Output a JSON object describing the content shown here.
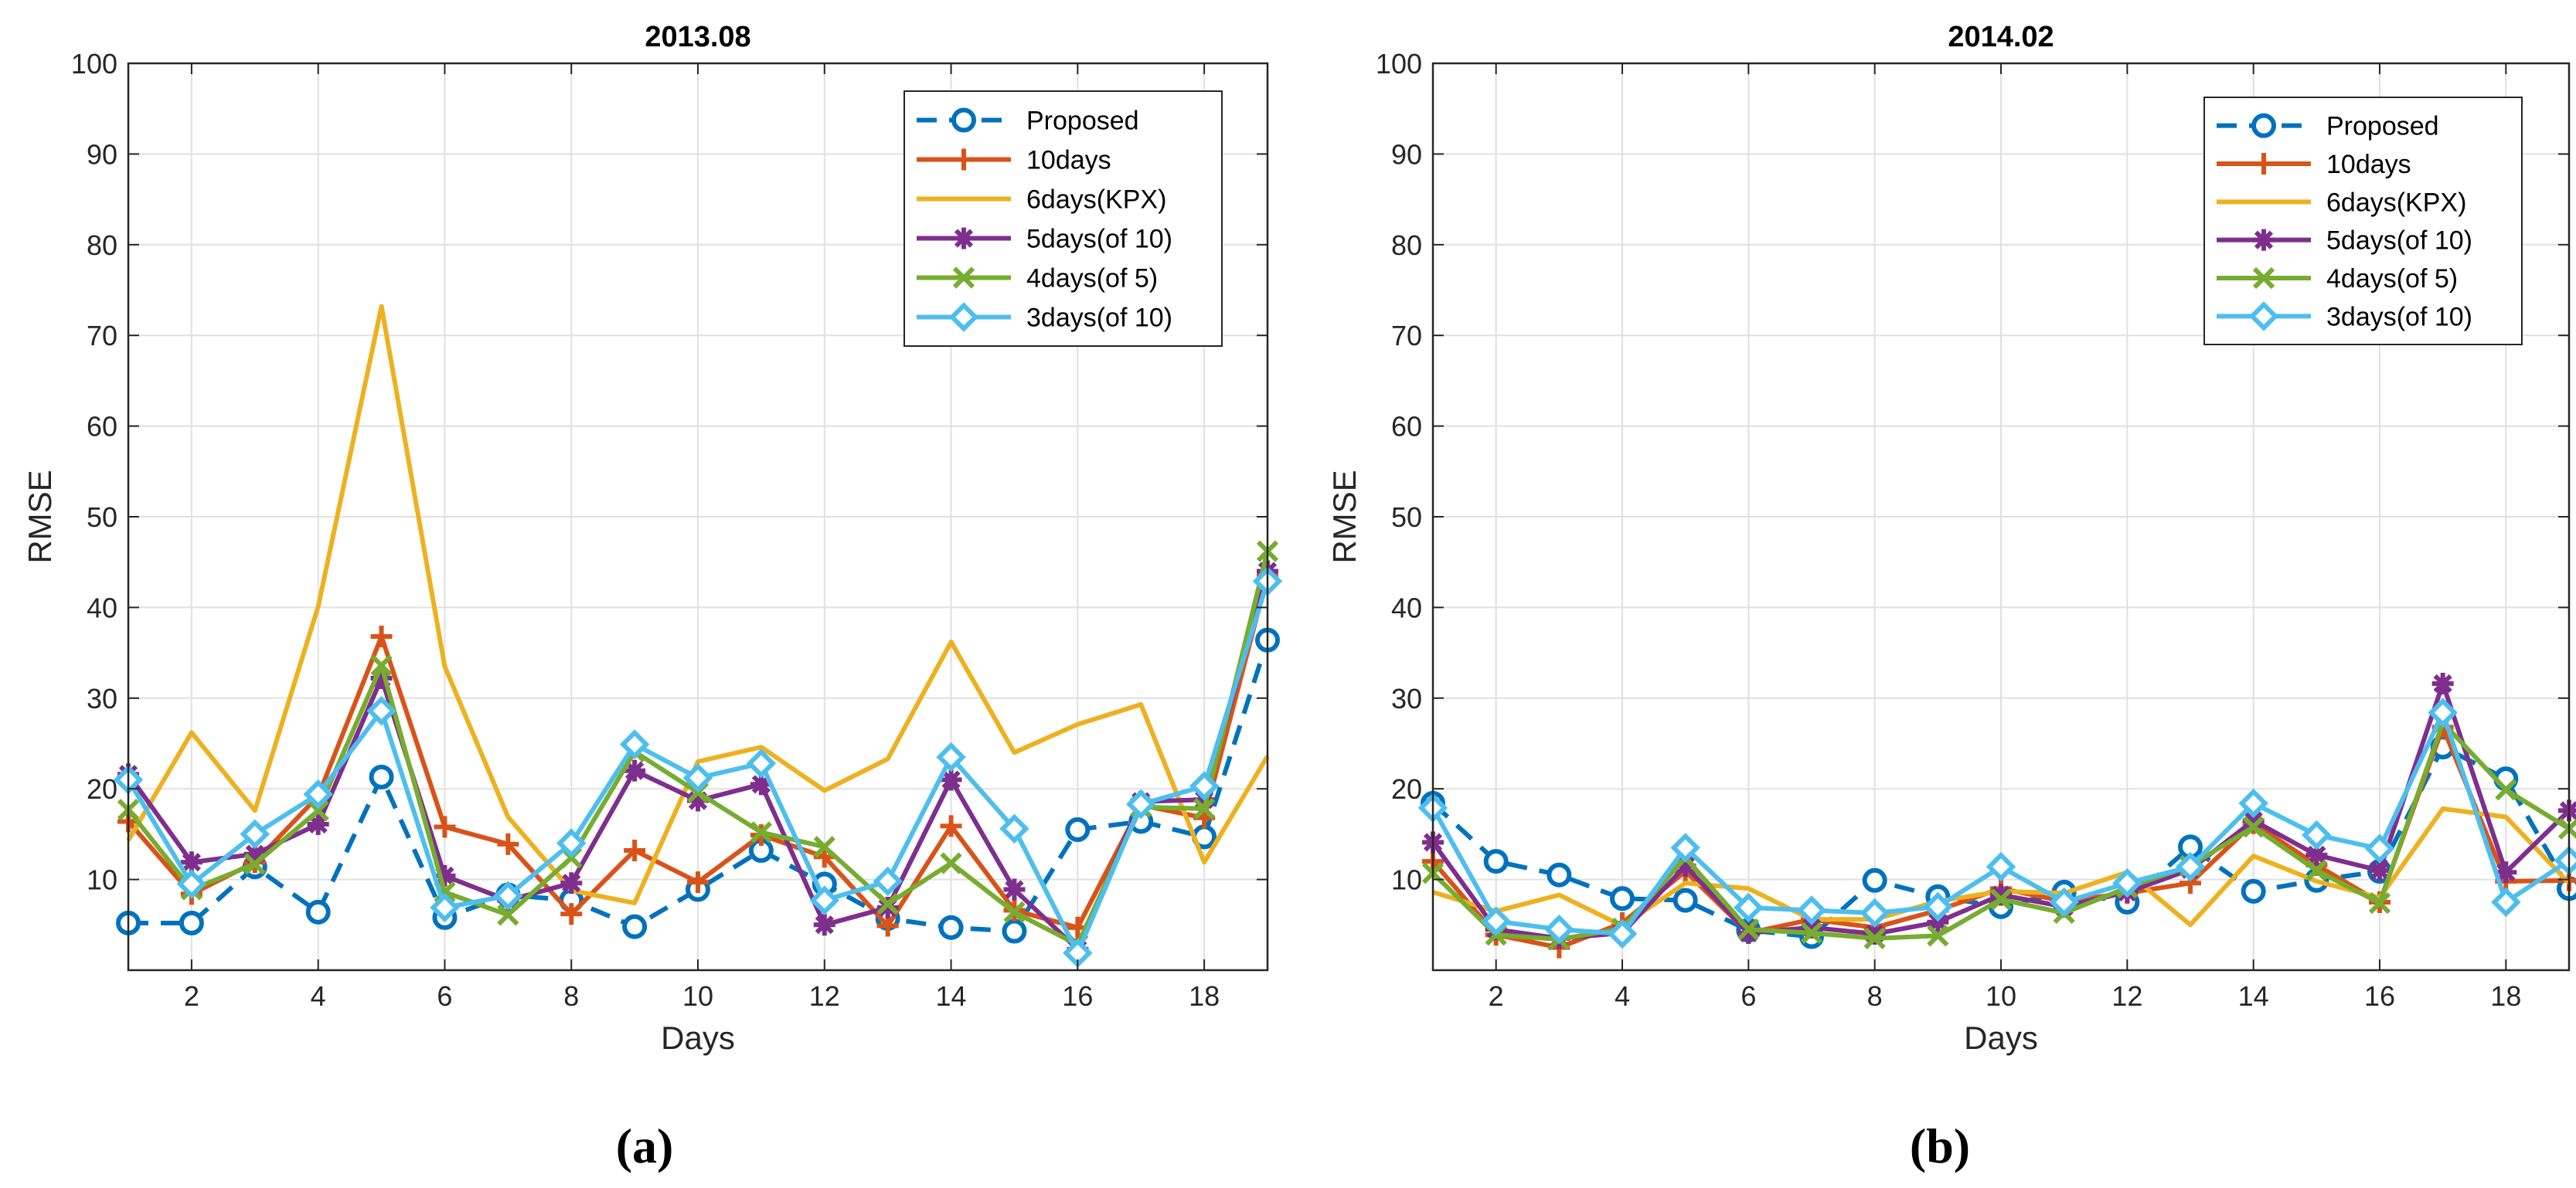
{
  "chart_data": [
    {
      "type": "line",
      "title": "2013.08",
      "xlabel": "Days",
      "ylabel": "RMSE",
      "caption": "(a)",
      "xlim": [
        1,
        19
      ],
      "ylim": [
        0,
        100
      ],
      "xticks": [
        2,
        4,
        6,
        8,
        10,
        12,
        14,
        16,
        18
      ],
      "yticks": [
        10,
        20,
        30,
        40,
        50,
        60,
        70,
        80,
        90,
        100
      ],
      "grid": true,
      "legend_position": "top-right",
      "x": [
        1,
        2,
        3,
        4,
        5,
        6,
        7,
        8,
        9,
        10,
        11,
        12,
        13,
        14,
        15,
        16,
        17,
        18,
        19
      ],
      "series": [
        {
          "name": "Proposed",
          "color": "#0072BD",
          "marker": "circle",
          "dashed": true,
          "values": [
            5.2,
            5.2,
            11.4,
            6.4,
            21.3,
            5.8,
            8.3,
            7.7,
            4.8,
            8.9,
            13.2,
            9.5,
            5.7,
            4.7,
            4.3,
            15.5,
            16.4,
            14.7,
            36.4
          ]
        },
        {
          "name": "10days",
          "color": "#D95319",
          "marker": "plus",
          "dashed": false,
          "values": [
            16.4,
            8.4,
            11.9,
            19.2,
            36.8,
            15.8,
            13.9,
            6.2,
            13.2,
            9.7,
            14.9,
            12.5,
            4.9,
            15.9,
            6.6,
            4.7,
            18.2,
            16.8,
            43.5
          ]
        },
        {
          "name": "6days(KPX)",
          "color": "#EDB120",
          "marker": "none",
          "dashed": false,
          "values": [
            14.3,
            26.2,
            17.6,
            40.1,
            73.2,
            33.5,
            16.9,
            8.8,
            7.4,
            23.0,
            24.6,
            19.8,
            23.3,
            36.2,
            24.0,
            27.1,
            29.3,
            11.9,
            23.6
          ]
        },
        {
          "name": "5days(of 10)",
          "color": "#7E2F8E",
          "marker": "asterisk",
          "dashed": false,
          "values": [
            21.6,
            11.9,
            12.8,
            16.1,
            32.2,
            10.4,
            7.7,
            9.6,
            22.0,
            18.7,
            20.5,
            5.0,
            6.9,
            21.0,
            8.9,
            2.3,
            18.6,
            18.8,
            44.0
          ]
        },
        {
          "name": "4days(of 5)",
          "color": "#77AC30",
          "marker": "x",
          "dashed": false,
          "values": [
            17.7,
            8.9,
            11.7,
            17.6,
            33.6,
            8.6,
            6.1,
            12.4,
            24.1,
            19.6,
            15.2,
            13.6,
            7.3,
            11.8,
            6.4,
            2.8,
            18.0,
            17.8,
            46.2
          ]
        },
        {
          "name": "3days(of 10)",
          "color": "#4DBEEE",
          "marker": "diamond",
          "dashed": false,
          "values": [
            21.0,
            9.5,
            15.0,
            19.4,
            28.6,
            6.9,
            8.2,
            14.0,
            24.9,
            21.2,
            22.8,
            7.7,
            9.8,
            23.5,
            15.6,
            1.9,
            18.3,
            20.3,
            42.9
          ]
        }
      ]
    },
    {
      "type": "line",
      "title": "2014.02",
      "xlabel": "Days",
      "ylabel": "RMSE",
      "caption": "(b)",
      "xlim": [
        1,
        19
      ],
      "ylim": [
        0,
        100
      ],
      "xticks": [
        2,
        4,
        6,
        8,
        10,
        12,
        14,
        16,
        18
      ],
      "yticks": [
        10,
        20,
        30,
        40,
        50,
        60,
        70,
        80,
        90,
        100
      ],
      "grid": true,
      "legend_position": "top-right",
      "x": [
        1,
        2,
        3,
        4,
        5,
        6,
        7,
        8,
        9,
        10,
        11,
        12,
        13,
        14,
        15,
        16,
        17,
        18,
        19
      ],
      "series": [
        {
          "name": "Proposed",
          "color": "#0072BD",
          "marker": "circle",
          "dashed": true,
          "values": [
            18.4,
            12.0,
            10.5,
            7.9,
            7.7,
            4.4,
            3.7,
            9.9,
            8.1,
            7.0,
            8.6,
            7.5,
            13.6,
            8.7,
            9.9,
            10.9,
            24.6,
            21.1,
            9.0
          ]
        },
        {
          "name": "10days",
          "color": "#D95319",
          "marker": "plus",
          "dashed": false,
          "values": [
            12.0,
            3.9,
            2.5,
            5.2,
            10.9,
            4.1,
            5.6,
            4.7,
            6.6,
            9.0,
            7.6,
            8.5,
            9.6,
            16.2,
            11.6,
            7.5,
            26.8,
            9.8,
            9.9
          ]
        },
        {
          "name": "6days(KPX)",
          "color": "#EDB120",
          "marker": "none",
          "dashed": false,
          "values": [
            8.6,
            6.5,
            8.3,
            4.9,
            9.6,
            9.0,
            5.6,
            5.6,
            7.6,
            8.7,
            8.5,
            10.8,
            5.0,
            12.6,
            9.8,
            8.0,
            17.8,
            16.9,
            9.6
          ]
        },
        {
          "name": "5days(of 10)",
          "color": "#7E2F8E",
          "marker": "asterisk",
          "dashed": false,
          "values": [
            14.1,
            4.5,
            3.5,
            4.1,
            11.5,
            4.1,
            4.7,
            4.0,
            5.3,
            8.3,
            7.0,
            8.6,
            11.1,
            16.5,
            12.7,
            11.0,
            31.6,
            10.8,
            17.6
          ]
        },
        {
          "name": "4days(of 5)",
          "color": "#77AC30",
          "marker": "x",
          "dashed": false,
          "values": [
            10.7,
            3.9,
            3.4,
            4.6,
            12.4,
            4.5,
            4.1,
            3.5,
            3.8,
            7.8,
            6.3,
            9.1,
            11.5,
            15.8,
            11.0,
            7.4,
            27.3,
            19.9,
            15.6
          ]
        },
        {
          "name": "3days(of 10)",
          "color": "#4DBEEE",
          "marker": "diamond",
          "dashed": false,
          "values": [
            17.9,
            5.4,
            4.5,
            4.0,
            13.5,
            6.9,
            6.6,
            6.3,
            7.0,
            11.4,
            7.5,
            9.6,
            11.4,
            18.4,
            14.9,
            13.4,
            28.4,
            7.5,
            12.1
          ]
        }
      ]
    }
  ]
}
